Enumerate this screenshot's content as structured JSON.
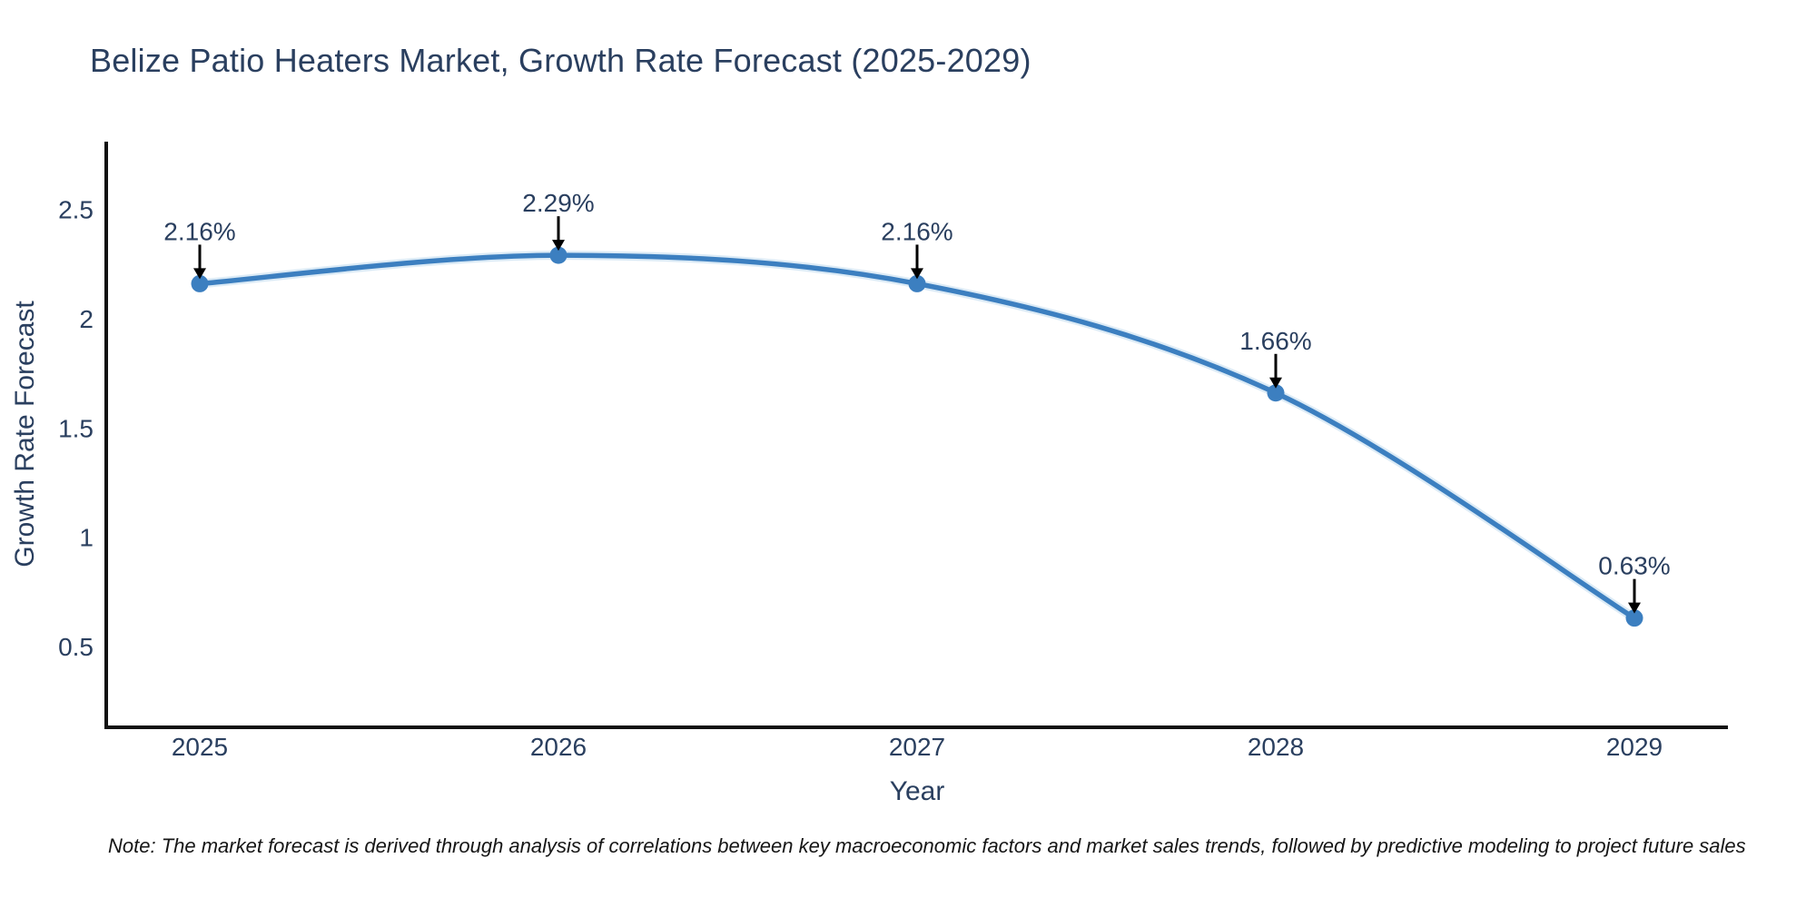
{
  "chart_data": {
    "type": "line",
    "title": "Belize Patio Heaters Market, Growth Rate Forecast (2025-2029)",
    "xlabel": "Year",
    "ylabel": "Growth Rate Forecast",
    "categories": [
      "2025",
      "2026",
      "2027",
      "2028",
      "2029"
    ],
    "series": [
      {
        "name": "Growth Rate Forecast",
        "values": [
          2.16,
          2.29,
          2.16,
          1.66,
          0.63
        ],
        "point_labels": [
          "2.16%",
          "2.29%",
          "2.16%",
          "1.66%",
          "0.63%"
        ]
      }
    ],
    "yticks": [
      0.5,
      1,
      1.5,
      2,
      2.5
    ],
    "ylim": [
      0.13,
      2.81
    ],
    "grid": false,
    "legend_position": "none",
    "line_shape": "spline",
    "note": "Note: The market forecast is derived through analysis of correlations between key macroeconomic factors and market sales trends, followed by predictive modeling to project future sales",
    "colors": {
      "line": "#3c7fc0",
      "line_halo": "#a8cde9",
      "marker": "#3c7fc0",
      "annotation_arrow": "#000000",
      "annotation_text": "#2a3f5f",
      "axis_line": "#111111",
      "tick_text": "#2a3f5f",
      "title_text": "#2a3f5f",
      "background": "#ffffff"
    }
  }
}
